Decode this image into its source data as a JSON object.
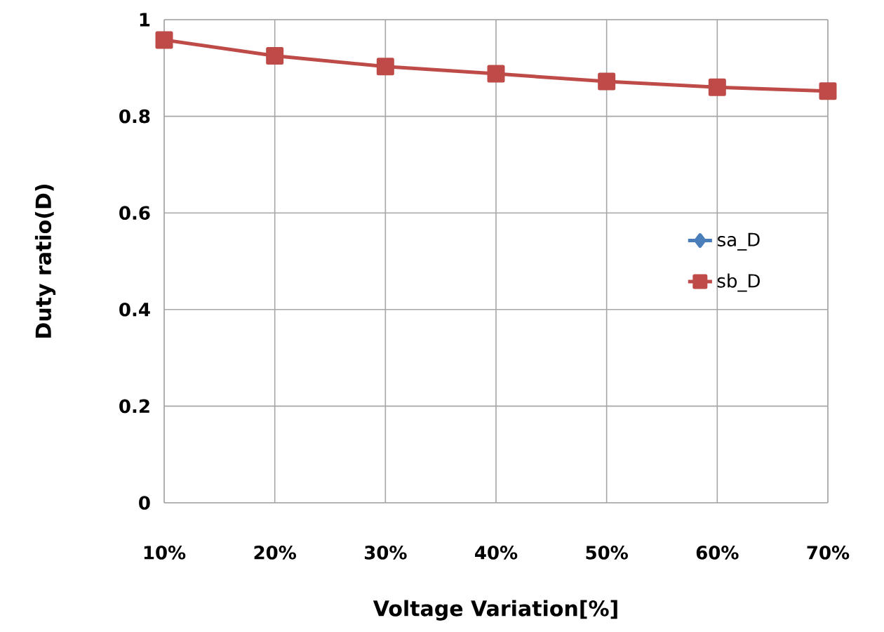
{
  "chart_data": {
    "type": "line",
    "xlabel": "Voltage Variation[%]",
    "ylabel": "Duty ratio(D)",
    "categories": [
      "10%",
      "20%",
      "30%",
      "40%",
      "50%",
      "60%",
      "70%"
    ],
    "series": [
      {
        "name": "sa_D",
        "color": "#4a7ebb",
        "marker": "diamond",
        "values": [
          null,
          null,
          null,
          null,
          null,
          null,
          null
        ]
      },
      {
        "name": "sb_D",
        "color": "#be4b48",
        "marker": "square",
        "values": [
          0.958,
          0.925,
          0.903,
          0.888,
          0.872,
          0.86,
          0.852
        ]
      }
    ],
    "ylim": [
      0,
      1
    ],
    "yticks": [
      0,
      0.2,
      0.4,
      0.6,
      0.8,
      1
    ],
    "grid": true,
    "legend": "right"
  }
}
